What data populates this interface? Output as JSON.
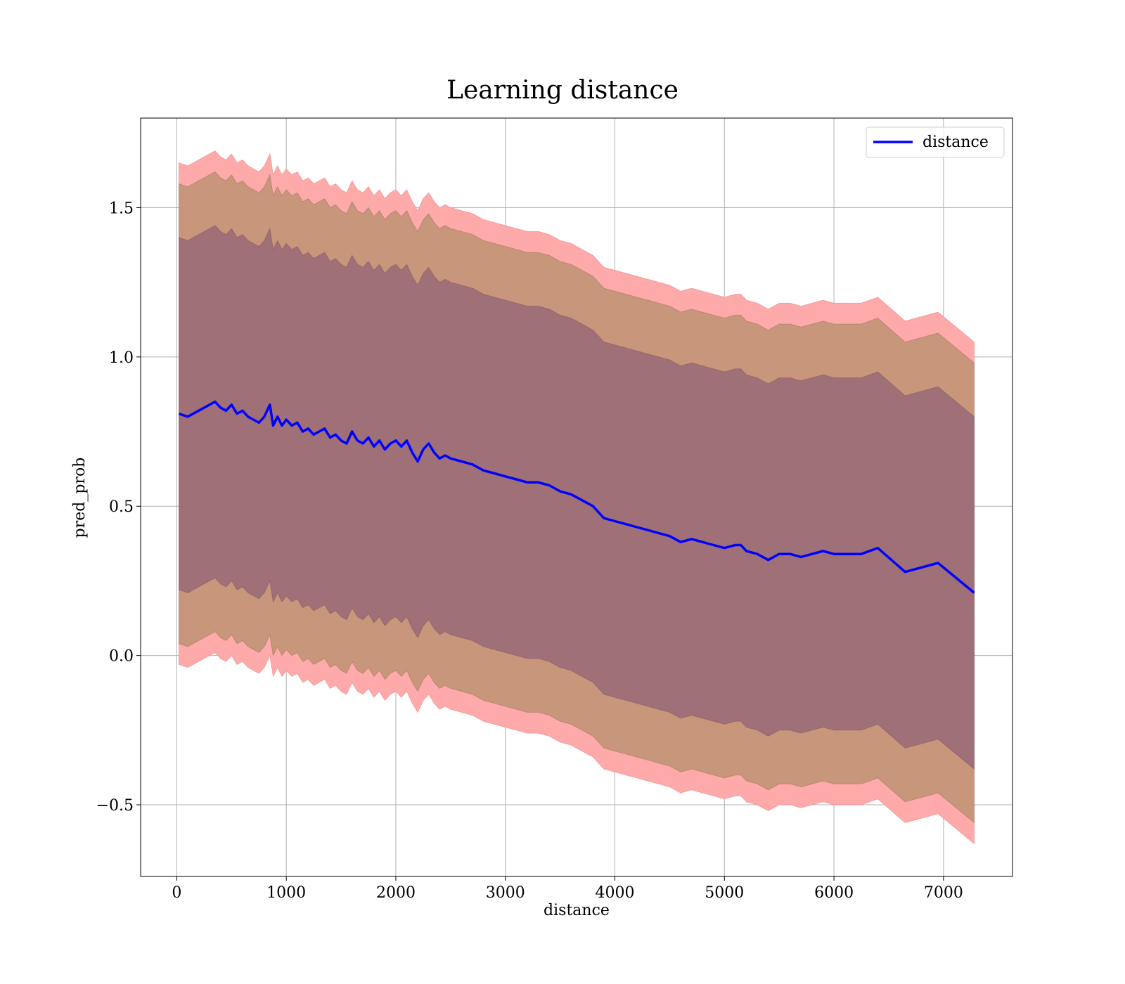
{
  "chart_data": {
    "type": "line",
    "title": "Learning distance",
    "xlabel": "distance",
    "ylabel": "pred_prob",
    "xlim": [
      -330,
      7630
    ],
    "ylim": [
      -0.74,
      1.8
    ],
    "xticks": [
      0,
      1000,
      2000,
      3000,
      4000,
      5000,
      6000,
      7000
    ],
    "yticks": [
      -0.5,
      0.0,
      0.5,
      1.0,
      1.5
    ],
    "ytick_labels": [
      "−0.5",
      "0.0",
      "0.5",
      "1.0",
      "1.5"
    ],
    "grid": true,
    "legend": {
      "placement": "top-right",
      "entries": [
        "distance"
      ]
    },
    "colors": {
      "line": "#0000ff",
      "band_outer": "#ffaaaa",
      "band_mid": "#c8967a",
      "band_inner": "#a07078",
      "grid": "#b0b0b0"
    },
    "series": [
      {
        "name": "distance",
        "x": [
          20,
          100,
          200,
          300,
          350,
          400,
          450,
          500,
          550,
          600,
          650,
          700,
          750,
          800,
          850,
          880,
          920,
          960,
          1000,
          1050,
          1100,
          1150,
          1200,
          1250,
          1300,
          1350,
          1400,
          1450,
          1500,
          1550,
          1600,
          1650,
          1700,
          1750,
          1800,
          1850,
          1900,
          1950,
          2000,
          2050,
          2100,
          2150,
          2200,
          2250,
          2300,
          2350,
          2400,
          2450,
          2500,
          2600,
          2700,
          2800,
          2900,
          3000,
          3100,
          3200,
          3300,
          3400,
          3500,
          3600,
          3700,
          3800,
          3900,
          4000,
          4100,
          4200,
          4300,
          4400,
          4500,
          4600,
          4700,
          4800,
          4900,
          5000,
          5100,
          5150,
          5200,
          5300,
          5400,
          5500,
          5600,
          5700,
          5800,
          5900,
          6000,
          6100,
          6250,
          6400,
          6650,
          6950,
          7280
        ],
        "y": [
          0.81,
          0.8,
          0.82,
          0.84,
          0.85,
          0.83,
          0.82,
          0.84,
          0.81,
          0.82,
          0.8,
          0.79,
          0.78,
          0.8,
          0.84,
          0.77,
          0.8,
          0.77,
          0.79,
          0.77,
          0.78,
          0.75,
          0.76,
          0.74,
          0.75,
          0.76,
          0.73,
          0.74,
          0.72,
          0.71,
          0.75,
          0.72,
          0.71,
          0.73,
          0.7,
          0.72,
          0.69,
          0.71,
          0.72,
          0.7,
          0.72,
          0.68,
          0.65,
          0.69,
          0.71,
          0.68,
          0.66,
          0.67,
          0.66,
          0.65,
          0.64,
          0.62,
          0.61,
          0.6,
          0.59,
          0.58,
          0.58,
          0.57,
          0.55,
          0.54,
          0.52,
          0.5,
          0.46,
          0.45,
          0.44,
          0.43,
          0.42,
          0.41,
          0.4,
          0.38,
          0.39,
          0.38,
          0.37,
          0.36,
          0.37,
          0.37,
          0.35,
          0.34,
          0.32,
          0.34,
          0.34,
          0.33,
          0.34,
          0.35,
          0.34,
          0.34,
          0.34,
          0.36,
          0.28,
          0.31,
          0.21
        ],
        "inner_band_halfwidth": 0.59,
        "mid_band_halfwidth": 0.77,
        "outer_band_halfwidth": 0.84
      }
    ]
  }
}
